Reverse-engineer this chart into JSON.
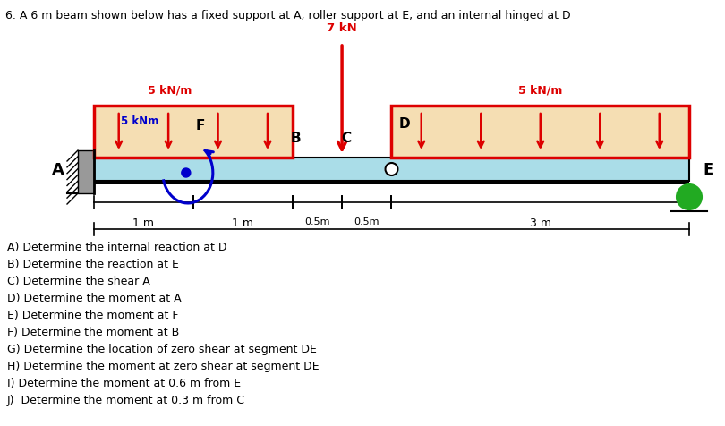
{
  "title": "6. A 6 m beam shown below has a fixed support at A, roller support at E, and an internal hinged at D",
  "beam_color": "#aadde8",
  "load_box_fill": "#f5deb3",
  "load_box_edge": "#dd0000",
  "arrow_color": "#dd0000",
  "moment_color": "#0000cc",
  "point_load_label": "7 kN",
  "dist_load_left_label": "5 kN/m",
  "dist_load_right_label": "5 kN/m",
  "moment_label": "5 kNm",
  "questions": [
    "A) Determine the internal reaction at D",
    "B) Determine the reaction at E",
    "C) Determine the shear A",
    "D) Determine the moment at A",
    "E) Determine the moment at F",
    "F) Determine the moment at B",
    "G) Determine the location of zero shear at segment DE",
    "H) Determine the moment at zero shear at segment DE",
    "I) Determine the moment at 0.6 m from E",
    "J)  Determine the moment at 0.3 m from C"
  ],
  "bg": "#ffffff"
}
